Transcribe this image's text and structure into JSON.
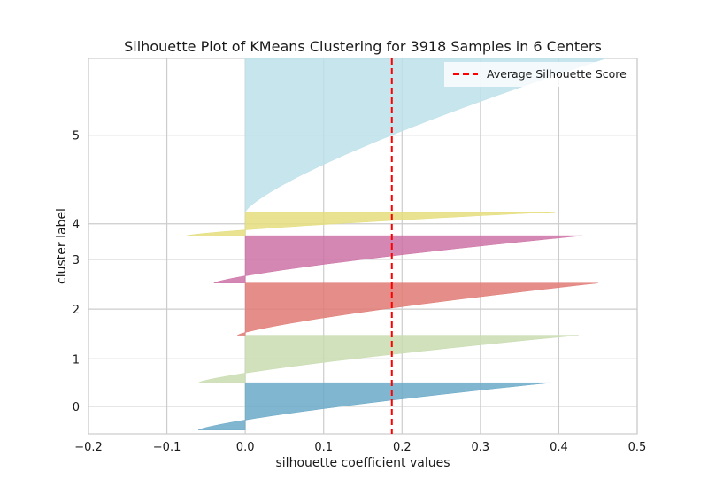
{
  "chart_data": {
    "type": "area",
    "title": "Silhouette Plot of KMeans Clustering for 3918 Samples in 6 Centers",
    "xlabel": "silhouette coefficient values",
    "ylabel": "cluster label",
    "xlim": [
      -0.2,
      0.5
    ],
    "xticks": [
      -0.2,
      -0.1,
      0.0,
      0.1,
      0.2,
      0.3,
      0.4,
      0.5
    ],
    "xtick_labels": [
      "−0.2",
      "−0.1",
      "0.0",
      "0.1",
      "0.2",
      "0.3",
      "0.4",
      "0.5"
    ],
    "ylim": [
      -40,
      3918
    ],
    "grid": true,
    "average_silhouette_score": 0.187,
    "legend": {
      "position": "top-right",
      "entries": [
        "Average Silhouette Score"
      ]
    },
    "clusters": [
      {
        "label": "0",
        "start": 0,
        "size": 500,
        "min": -0.06,
        "max": 0.39,
        "color": "#6aa9c7"
      },
      {
        "label": "1",
        "start": 500,
        "size": 500,
        "min": -0.06,
        "max": 0.425,
        "color": "#c8dcb0"
      },
      {
        "label": "2",
        "start": 1000,
        "size": 550,
        "min": -0.01,
        "max": 0.45,
        "color": "#e07a74"
      },
      {
        "label": "3",
        "start": 1550,
        "size": 500,
        "min": -0.04,
        "max": 0.43,
        "color": "#cd72a6"
      },
      {
        "label": "4",
        "start": 2050,
        "size": 250,
        "min": -0.075,
        "max": 0.395,
        "color": "#e5de7e"
      },
      {
        "label": "5",
        "start": 2300,
        "size": 1618,
        "min": 0.0,
        "max": 0.46,
        "color": "#bde0ea"
      }
    ]
  }
}
